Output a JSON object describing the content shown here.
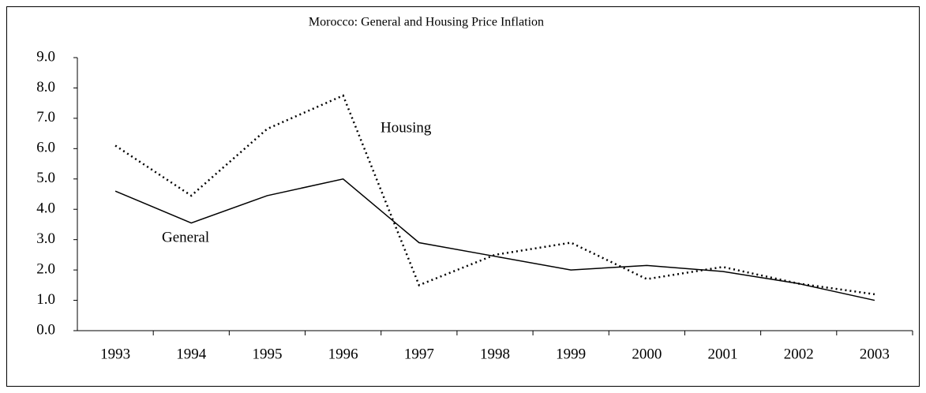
{
  "chart_data": {
    "type": "line",
    "title": "Morocco: General and Housing Price Inflation",
    "categories": [
      "1993",
      "1994",
      "1995",
      "1996",
      "1997",
      "1998",
      "1999",
      "2000",
      "2001",
      "2002",
      "2003"
    ],
    "series": [
      {
        "name": "General",
        "color": "#000000",
        "style": "solid",
        "values": [
          4.6,
          3.55,
          4.45,
          5.0,
          2.9,
          2.45,
          2.0,
          2.15,
          1.95,
          1.55,
          1.0
        ]
      },
      {
        "name": "Housing",
        "color": "#000000",
        "style": "dotted",
        "values": [
          6.1,
          4.45,
          6.65,
          7.75,
          1.5,
          2.5,
          2.9,
          1.7,
          2.1,
          1.55,
          1.2
        ]
      }
    ],
    "ylim": [
      0,
      9
    ],
    "yticks": [
      {
        "value": 0,
        "label": "0.0"
      },
      {
        "value": 1,
        "label": "1.0"
      },
      {
        "value": 2,
        "label": "2.0"
      },
      {
        "value": 3,
        "label": "3.0"
      },
      {
        "value": 4,
        "label": "4.0"
      },
      {
        "value": 5,
        "label": "5.0"
      },
      {
        "value": 6,
        "label": "6.0"
      },
      {
        "value": 7,
        "label": "7.0"
      },
      {
        "value": 8,
        "label": "8.0"
      },
      {
        "value": 9,
        "label": "9.0"
      }
    ],
    "grid": false
  }
}
